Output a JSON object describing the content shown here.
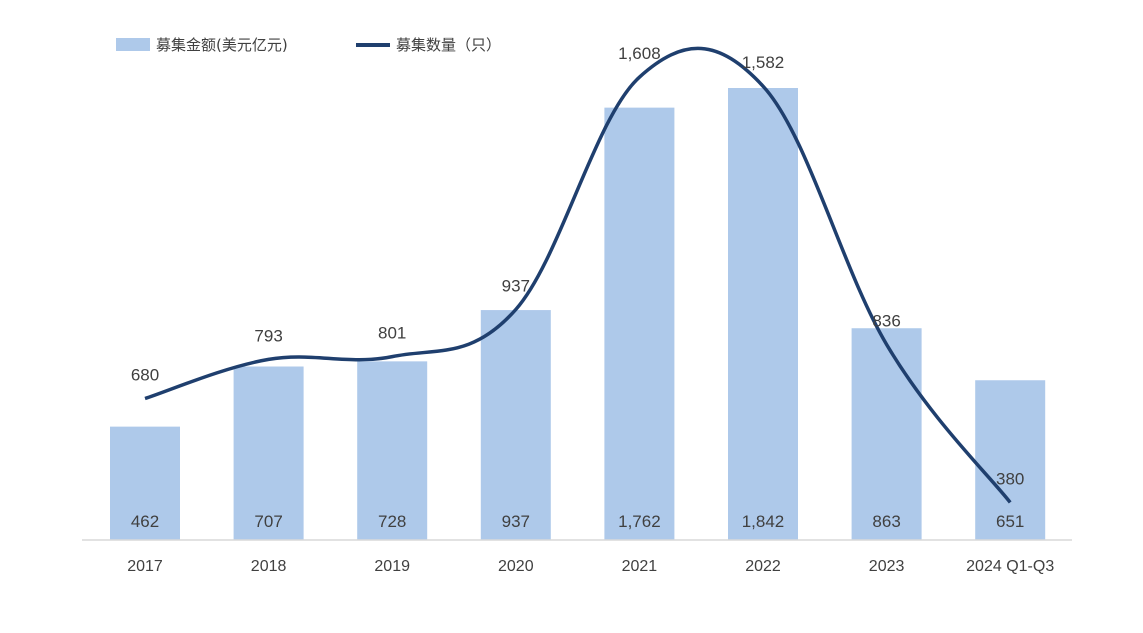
{
  "chart_data": {
    "type": "bar",
    "categories": [
      "2017",
      "2018",
      "2019",
      "2020",
      "2021",
      "2022",
      "2023",
      "2024 Q1-Q3"
    ],
    "series": [
      {
        "name": "募集金额(美元亿元)",
        "type": "bar",
        "color": "#aec9ea",
        "values": [
          462,
          707,
          728,
          937,
          1762,
          1842,
          863,
          651
        ]
      },
      {
        "name": "募集数量（只）",
        "type": "line",
        "color": "#1f3f6e",
        "values": [
          680,
          793,
          801,
          937,
          1608,
          1582,
          836,
          380
        ]
      }
    ],
    "legend_position": "top-left",
    "grid": false
  }
}
